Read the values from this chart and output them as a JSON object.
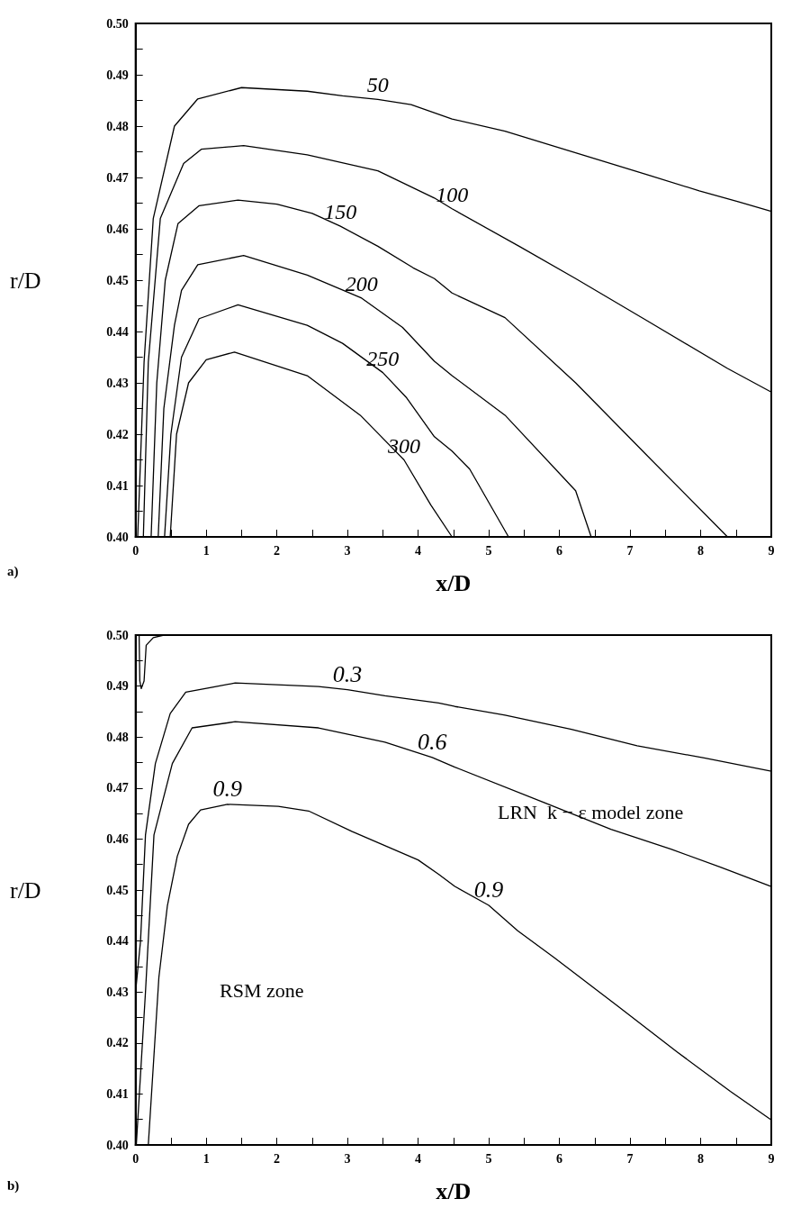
{
  "chart_data": [
    {
      "type": "line",
      "xlabel": "x/D",
      "ylabel": "r/D",
      "annotations": [
        "a)"
      ],
      "xlim": [
        0,
        9
      ],
      "ylim": [
        0.4,
        0.5
      ],
      "xticks": [
        0,
        {
          "value": 0.5,
          "label": null
        },
        1,
        {
          "value": 1.5,
          "label": null
        },
        2,
        {
          "value": 2.5,
          "label": null
        },
        3,
        {
          "value": 3.5,
          "label": null
        },
        4,
        {
          "value": 4.5,
          "label": null
        },
        5,
        {
          "value": 5.5,
          "label": null
        },
        6,
        {
          "value": 6.5,
          "label": null
        },
        7,
        {
          "value": 7.5,
          "label": null
        },
        8,
        {
          "value": 8.5,
          "label": null
        },
        9
      ],
      "yticks": [
        {
          "value": 0.4,
          "label": "0.40"
        },
        {
          "value": 0.405,
          "label": null
        },
        0.41,
        {
          "value": 0.415,
          "label": null
        },
        0.42,
        {
          "value": 0.425,
          "label": null
        },
        0.43,
        {
          "value": 0.435,
          "label": null
        },
        0.44,
        {
          "value": 0.445,
          "label": null
        },
        0.45,
        {
          "value": 0.455,
          "label": null
        },
        0.46,
        {
          "value": 0.465,
          "label": null
        },
        0.47,
        {
          "value": 0.475,
          "label": null
        },
        0.48,
        {
          "value": 0.485,
          "label": null
        },
        0.49,
        {
          "value": 0.495,
          "label": null
        },
        {
          "value": 0.5,
          "label": "0.50"
        }
      ],
      "grid": false,
      "legend": false,
      "marker": "none",
      "line_style": "solid",
      "series": [
        {
          "name": "50",
          "color": "#000000",
          "x": [
            0.03,
            0.12,
            0.25,
            0.55,
            0.88,
            1.5,
            2.43,
            2.93,
            3.43,
            3.9,
            4.48,
            5.23,
            6.23,
            7.23,
            7.98,
            8.53,
            9
          ],
          "values": [
            0.4,
            0.434,
            0.462,
            0.48,
            0.4853,
            0.4875,
            0.4868,
            0.4859,
            0.4852,
            0.4842,
            0.4814,
            0.479,
            0.4748,
            0.4706,
            0.4674,
            0.4653,
            0.4634
          ]
        },
        {
          "name": "100",
          "color": "#000000",
          "x": [
            0.11,
            0.18,
            0.35,
            0.68,
            0.93,
            1.53,
            2.43,
            3.43,
            4.23,
            4.48,
            5.43,
            6.23,
            7.23,
            8.38,
            9
          ],
          "values": [
            0.4,
            0.434,
            0.462,
            0.4727,
            0.4755,
            0.4762,
            0.4744,
            0.4713,
            0.466,
            0.4639,
            0.4566,
            0.4503,
            0.4422,
            0.4328,
            0.4282
          ]
        },
        {
          "name": "150",
          "color": "#000000",
          "x": [
            0.22,
            0.3,
            0.42,
            0.6,
            0.9,
            1.45,
            2.0,
            2.5,
            2.9,
            3.43,
            3.93,
            4.23,
            4.48,
            5.23,
            6.23,
            7.23,
            8.38
          ],
          "values": [
            0.4,
            0.43,
            0.45,
            0.461,
            0.4645,
            0.4656,
            0.4648,
            0.463,
            0.4605,
            0.4566,
            0.4524,
            0.4503,
            0.4475,
            0.4427,
            0.43,
            0.416,
            0.4
          ]
        },
        {
          "name": "200",
          "color": "#000000",
          "x": [
            0.32,
            0.4,
            0.55,
            0.65,
            0.88,
            1.53,
            2.43,
            3.2,
            3.78,
            4.23,
            4.48,
            5.23,
            6.23,
            6.45
          ],
          "values": [
            0.4,
            0.425,
            0.4412,
            0.448,
            0.453,
            0.4548,
            0.451,
            0.4465,
            0.4408,
            0.4342,
            0.4314,
            0.4237,
            0.409,
            0.4
          ]
        },
        {
          "name": "250",
          "color": "#000000",
          "x": [
            0.41,
            0.5,
            0.65,
            0.9,
            1.45,
            2.43,
            2.93,
            3.5,
            3.83,
            4.23,
            4.48,
            4.73,
            5.28
          ],
          "values": [
            0.4,
            0.42,
            0.435,
            0.4425,
            0.4452,
            0.4412,
            0.4377,
            0.432,
            0.4272,
            0.4195,
            0.4167,
            0.4132,
            0.4
          ]
        },
        {
          "name": "300",
          "color": "#000000",
          "x": [
            0.49,
            0.58,
            0.75,
            1.0,
            1.4,
            2.43,
            3.18,
            3.8,
            4.18,
            4.48
          ],
          "values": [
            0.4,
            0.42,
            0.43,
            0.4345,
            0.436,
            0.4314,
            0.4237,
            0.415,
            0.4062,
            0.4
          ]
        }
      ]
    },
    {
      "type": "line",
      "xlabel": "x/D",
      "ylabel": "r/D",
      "annotations": [
        "LRN  k − ε model zone",
        "RSM zone",
        "b)"
      ],
      "xlim": [
        0,
        9
      ],
      "ylim": [
        0.4,
        0.5
      ],
      "xticks": [
        0,
        {
          "value": 0.5,
          "label": null
        },
        1,
        {
          "value": 1.5,
          "label": null
        },
        2,
        {
          "value": 2.5,
          "label": null
        },
        3,
        {
          "value": 3.5,
          "label": null
        },
        4,
        {
          "value": 4.5,
          "label": null
        },
        5,
        {
          "value": 5.5,
          "label": null
        },
        6,
        {
          "value": 6.5,
          "label": null
        },
        7,
        {
          "value": 7.5,
          "label": null
        },
        8,
        {
          "value": 8.5,
          "label": null
        },
        9
      ],
      "yticks": [
        {
          "value": 0.4,
          "label": "0.40"
        },
        {
          "value": 0.405,
          "label": null
        },
        0.41,
        {
          "value": 0.415,
          "label": null
        },
        0.42,
        {
          "value": 0.425,
          "label": null
        },
        0.43,
        {
          "value": 0.435,
          "label": null
        },
        0.44,
        {
          "value": 0.445,
          "label": null
        },
        0.45,
        {
          "value": 0.455,
          "label": null
        },
        0.46,
        {
          "value": 0.465,
          "label": null
        },
        0.47,
        {
          "value": 0.475,
          "label": null
        },
        0.48,
        {
          "value": 0.485,
          "label": null
        },
        0.49,
        {
          "value": 0.495,
          "label": null
        },
        {
          "value": 0.5,
          "label": "0.50"
        }
      ],
      "grid": false,
      "legend": false,
      "marker": "none",
      "line_style": "solid",
      "series": [
        {
          "name": "0.3",
          "color": "#000000",
          "x": [
            0,
            0.07,
            0.14,
            0.28,
            0.49,
            0.71,
            1.41,
            2.59,
            3.0,
            3.53,
            4.29,
            4.52,
            5.23,
            6.17,
            7.1,
            8.05,
            9
          ],
          "values": [
            0.43,
            0.44,
            0.4608,
            0.4748,
            0.4846,
            0.4888,
            0.4906,
            0.4899,
            0.4893,
            0.4881,
            0.4867,
            0.486,
            0.4843,
            0.4815,
            0.4783,
            0.4759,
            0.4733
          ]
        },
        {
          "name": "0.6",
          "color": "#000000",
          "x": [
            0.01,
            0.14,
            0.26,
            0.52,
            0.8,
            1.41,
            2.59,
            3.53,
            4.2,
            4.52,
            5.79,
            6.73,
            7.58,
            8.28,
            9
          ],
          "values": [
            0.4,
            0.43,
            0.4608,
            0.4748,
            0.4818,
            0.483,
            0.4818,
            0.479,
            0.476,
            0.4741,
            0.4671,
            0.4619,
            0.458,
            0.4545,
            0.4507
          ]
        },
        {
          "name": "0.9",
          "color": "#000000",
          "x": [
            0.18,
            0.33,
            0.45,
            0.59,
            0.75,
            0.92,
            1.3,
            2.02,
            2.45,
            3.06,
            4.0,
            4.29,
            4.52,
            5.0,
            5.41,
            5.93,
            6.82,
            7.67,
            8.42,
            9
          ],
          "values": [
            0.4,
            0.4329,
            0.4469,
            0.4566,
            0.4629,
            0.4657,
            0.4668,
            0.4664,
            0.4655,
            0.4615,
            0.4559,
            0.4531,
            0.4507,
            0.447,
            0.442,
            0.4367,
            0.4273,
            0.4182,
            0.4105,
            0.4049
          ]
        },
        {
          "color": "#000000",
          "x": [
            0.05,
            0.06,
            0.08,
            0.12,
            0.15,
            0.25,
            0.4
          ],
          "values": [
            0.5,
            0.491,
            0.4895,
            0.491,
            0.498,
            0.4995,
            0.5
          ]
        }
      ]
    }
  ]
}
